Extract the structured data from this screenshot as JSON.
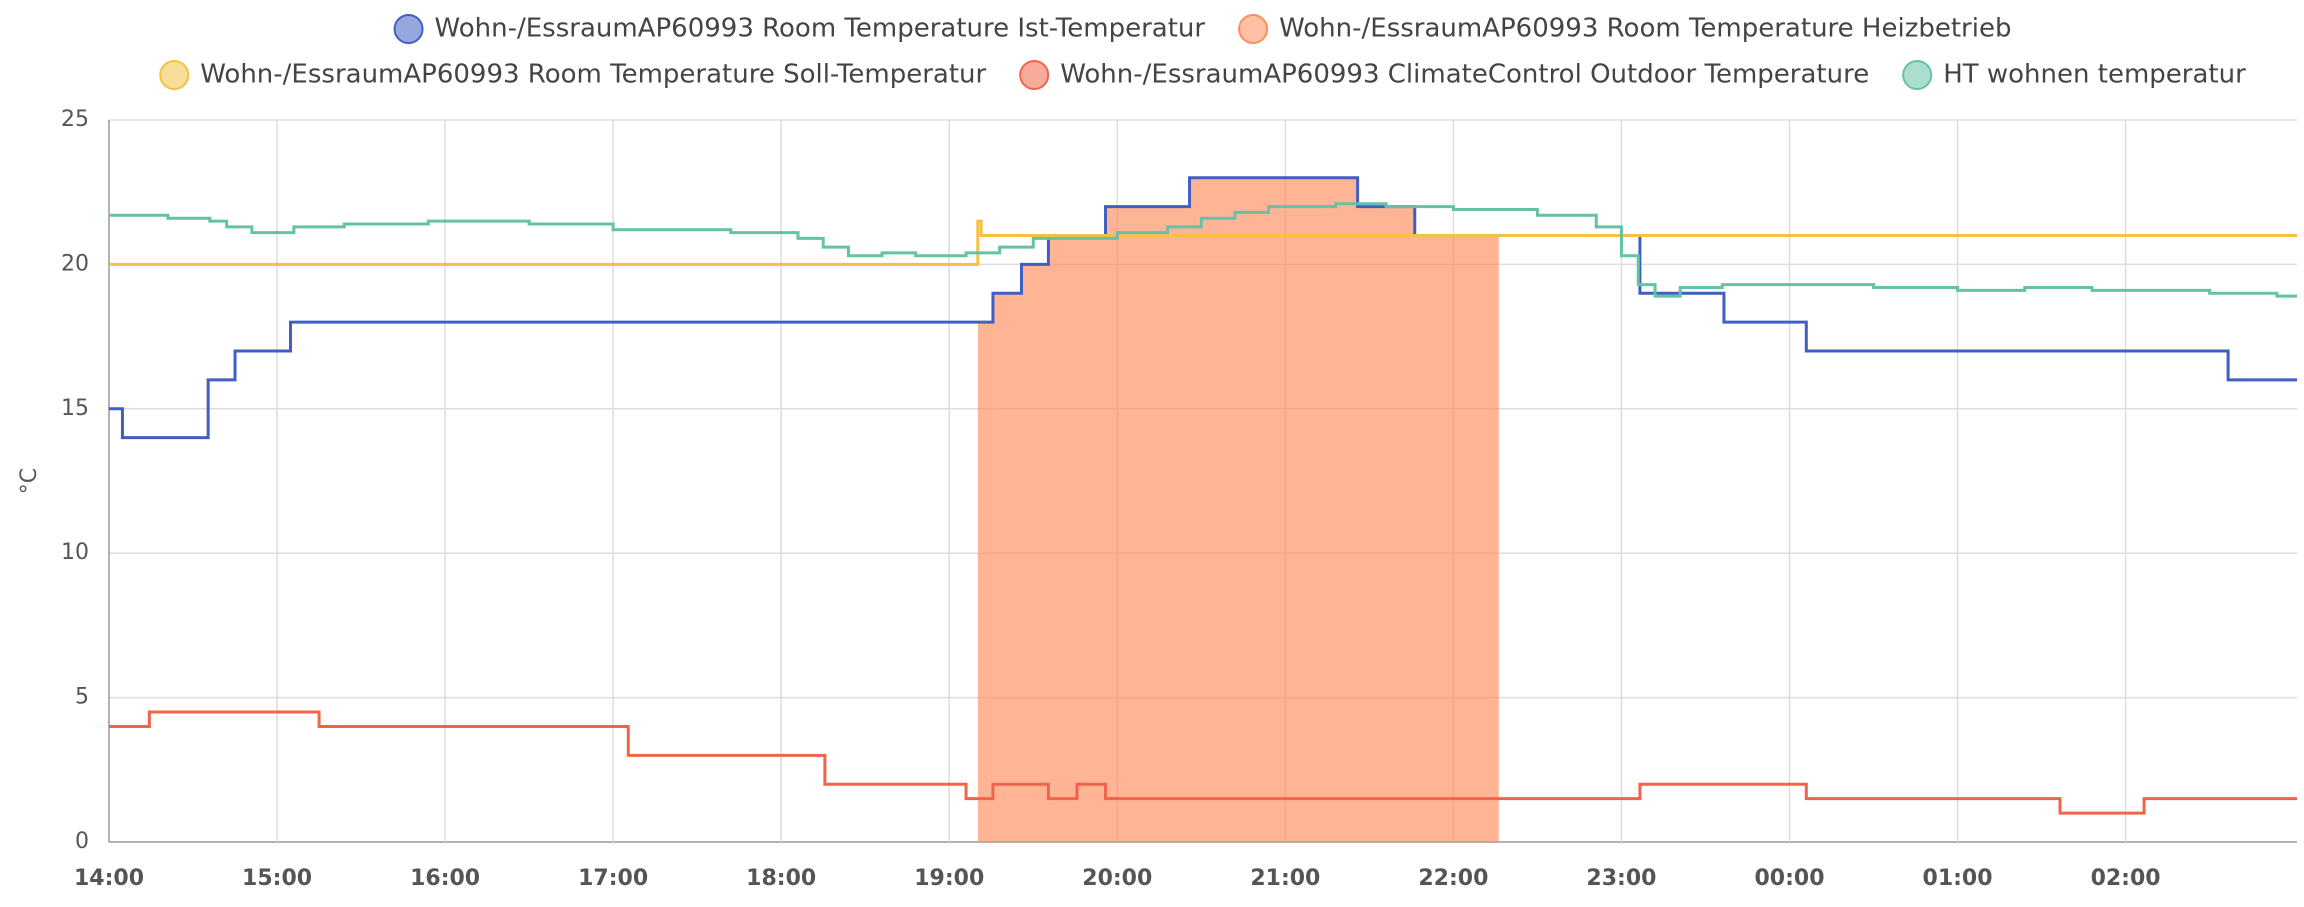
{
  "chart_data": {
    "type": "step",
    "y_label": "°C",
    "xlim": [
      14,
      27.02
    ],
    "xticks": [
      {
        "value": 14,
        "label": "14:00"
      },
      {
        "value": 15,
        "label": "15:00"
      },
      {
        "value": 16,
        "label": "16:00"
      },
      {
        "value": 17,
        "label": "17:00"
      },
      {
        "value": 18,
        "label": "18:00"
      },
      {
        "value": 19,
        "label": "19:00"
      },
      {
        "value": 20,
        "label": "20:00"
      },
      {
        "value": 21,
        "label": "21:00"
      },
      {
        "value": 22,
        "label": "22:00"
      },
      {
        "value": 23,
        "label": "23:00"
      },
      {
        "value": 24,
        "label": "00:00"
      },
      {
        "value": 25,
        "label": "01:00"
      },
      {
        "value": 26,
        "label": "02:00"
      }
    ],
    "ylim": [
      0,
      25
    ],
    "yticks": [
      0,
      5,
      10,
      15,
      20,
      25
    ],
    "grid": true,
    "series": [
      {
        "name": "Wohn-/EssraumAP60993 Room Temperature Ist-Temperatur",
        "color": "#3f5fc2",
        "style": "line",
        "x": [
          14,
          14.08,
          14.59,
          14.75,
          15.08,
          19.26,
          19.43,
          19.59,
          19.93,
          20.43,
          21.43,
          21.77,
          23.11,
          23.61,
          24.1,
          26.61
        ],
        "values": [
          15,
          14,
          16,
          17,
          18,
          19,
          20,
          21,
          22,
          23,
          22,
          21,
          19,
          18,
          17,
          16
        ]
      },
      {
        "name": "Wohn-/EssraumAP60993 Room Temperature Heizbetrieb",
        "color": "#ff8d5c",
        "style": "area",
        "x": [
          19.17,
          19.26,
          19.43,
          19.59,
          19.93,
          20.43,
          21.43,
          21.77,
          22.27
        ],
        "values": [
          18,
          19,
          20,
          21,
          22,
          23,
          22,
          21,
          null
        ]
      },
      {
        "name": "Wohn-/EssraumAP60993 Room Temperature Soll-Temperatur",
        "color": "#f5c143",
        "style": "line",
        "x": [
          14,
          19.17,
          19.19
        ],
        "values": [
          20,
          21.5,
          21
        ]
      },
      {
        "name": "Wohn-/EssraumAP60993 ClimateControl Outdoor Temperature",
        "color": "#f2644a",
        "style": "line",
        "x": [
          14,
          14.24,
          15.25,
          17.09,
          18.26,
          19.1,
          19.26,
          19.59,
          19.76,
          19.93,
          23.11,
          24.1,
          25.61,
          26.11
        ],
        "values": [
          4,
          4.5,
          4,
          3,
          2,
          1.5,
          2,
          1.5,
          2,
          1.5,
          2,
          1.5,
          1,
          1.5
        ]
      },
      {
        "name": "HT wohnen temperatur",
        "color": "#66c2a5",
        "style": "line",
        "x": [
          14,
          14.35,
          14.6,
          14.7,
          14.85,
          15.1,
          15.4,
          15.9,
          16.5,
          17.0,
          17.7,
          18.1,
          18.25,
          18.4,
          18.6,
          18.8,
          19.1,
          19.3,
          19.5,
          20.0,
          20.3,
          20.5,
          20.7,
          20.9,
          21.3,
          21.6,
          22.0,
          22.5,
          22.85,
          23.0,
          23.1,
          23.2,
          23.35,
          23.6,
          24.5,
          25.0,
          25.4,
          25.8,
          26.5,
          26.9
        ],
        "values": [
          21.7,
          21.6,
          21.5,
          21.3,
          21.1,
          21.3,
          21.4,
          21.5,
          21.4,
          21.2,
          21.1,
          20.9,
          20.6,
          20.3,
          20.4,
          20.3,
          20.4,
          20.6,
          20.9,
          21.1,
          21.3,
          21.6,
          21.8,
          22.0,
          22.1,
          22.0,
          21.9,
          21.7,
          21.3,
          20.3,
          19.3,
          18.9,
          19.2,
          19.3,
          19.2,
          19.1,
          19.2,
          19.1,
          19.0,
          18.9
        ]
      }
    ]
  }
}
